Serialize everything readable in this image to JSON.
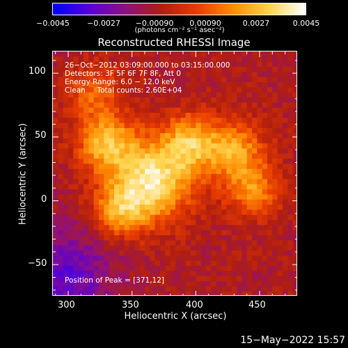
{
  "colorbar": {
    "ticks": [
      "−0.0045",
      "−0.0027",
      "−0.00090",
      "0.00090",
      "0.0027",
      "0.0045"
    ],
    "unit": "(photons cm⁻² s⁻¹ asec⁻²)",
    "range": [
      -0.0045,
      0.0045
    ],
    "colormap": [
      "#0000ff",
      "#5a00d4",
      "#8e1080",
      "#b01e10",
      "#e83c00",
      "#ff8c00",
      "#ffd24a",
      "#ffffff"
    ]
  },
  "title": "Reconstructed RHESSI Image",
  "annotation": {
    "line1": "26−Oct−2012 03:09:00.000 to 03:15:00.000",
    "line2": "Detectors: 3F 5F 6F 7F 8F, Att 0",
    "line3": "Energy Range: 6.0 − 12.0 keV",
    "line4": "Clean     Total counts: 2.60E+04",
    "peak": "Position of Peak = [371,12]"
  },
  "axes": {
    "xlabel": "Heliocentric X (arcsec)",
    "ylabel": "Heliocentric Y (arcsec)",
    "xticks": [
      "300",
      "350",
      "400",
      "450"
    ],
    "yticks": [
      "100",
      "50",
      "0",
      "−50"
    ]
  },
  "footer": "15−May−2022 15:57",
  "chart_data": {
    "type": "heatmap",
    "title": "Reconstructed RHESSI Image",
    "xlabel": "Heliocentric X (arcsec)",
    "ylabel": "Heliocentric Y (arcsec)",
    "xlim": [
      288,
      480
    ],
    "ylim": [
      -75,
      117
    ],
    "xticks": [
      300,
      350,
      400,
      450
    ],
    "yticks": [
      -50,
      0,
      50,
      100
    ],
    "value_range": [
      -0.0045,
      0.0045
    ],
    "peak_position": [
      371,
      12
    ],
    "sources": [
      {
        "x": 365,
        "y": 15,
        "sigma": 22,
        "amp": 0.0045
      },
      {
        "x": 330,
        "y": 45,
        "sigma": 16,
        "amp": 0.0034
      },
      {
        "x": 395,
        "y": 45,
        "sigma": 16,
        "amp": 0.0032
      },
      {
        "x": 430,
        "y": 40,
        "sigma": 16,
        "amp": 0.003
      },
      {
        "x": 445,
        "y": 8,
        "sigma": 15,
        "amp": 0.0026
      },
      {
        "x": 320,
        "y": 85,
        "sigma": 15,
        "amp": 0.002
      },
      {
        "x": 340,
        "y": -8,
        "sigma": 14,
        "amp": 0.0028
      }
    ],
    "background": -0.0008
  }
}
